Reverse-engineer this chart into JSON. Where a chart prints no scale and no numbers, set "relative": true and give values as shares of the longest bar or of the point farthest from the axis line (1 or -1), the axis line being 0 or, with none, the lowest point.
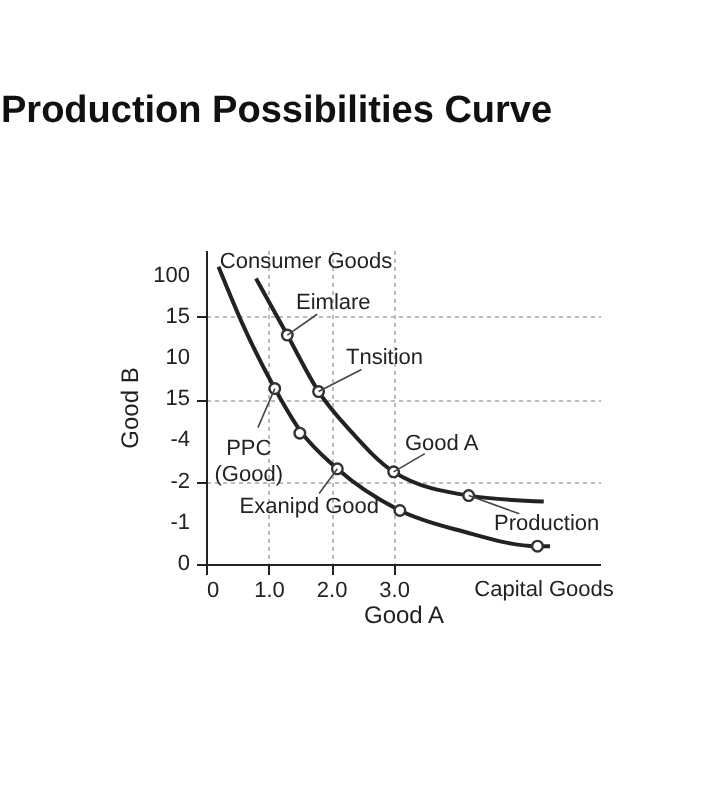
{
  "chart_data": {
    "type": "line",
    "title": "Production Possibilities Curve",
    "xlabel": "Good A",
    "ylabel": "Good B",
    "relative": true,
    "xlim": [
      0,
      6.3
    ],
    "xticks": [
      0,
      {
        "value": 1,
        "label": "1.0"
      },
      {
        "value": 2,
        "label": "2.0"
      },
      {
        "value": 3,
        "label": "3.0"
      }
    ],
    "grid": true,
    "series": [
      {
        "color": "#222222",
        "marker": "none",
        "x": [
          0.2,
          0.6,
          1.1,
          1.5,
          2.1,
          3.1,
          4.1,
          5.3,
          5.5
        ],
        "values": [
          1,
          0.8,
          0.59,
          0.45,
          0.32,
          0.18,
          0.11,
          0.06,
          0.06
        ]
      },
      {
        "color": "#222222",
        "marker": "none",
        "x": [
          0.8,
          1.3,
          1.8,
          2.3,
          3.0,
          4.2,
          5.4
        ],
        "values": [
          0.96,
          0.77,
          0.58,
          0.45,
          0.31,
          0.23,
          0.21
        ]
      },
      {
        "type": "scatter",
        "color": "#333333",
        "marker": "circle",
        "x": [
          1.3,
          1.8,
          1.1,
          1.5,
          2.1,
          3.0,
          3.1,
          4.2,
          5.3
        ],
        "values": [
          0.77,
          0.58,
          0.59,
          0.44,
          0.32,
          0.31,
          0.18,
          0.23,
          0.06
        ]
      }
    ],
    "annotations": [
      "Consumer Goods",
      "Capital Goods",
      "0",
      "-1",
      "-2",
      "-4",
      "15",
      "10",
      "15",
      "100",
      {
        "text": "Eimlare",
        "x": 1.3,
        "y": 0.77
      },
      {
        "text": "Tnsition",
        "x": 1.8,
        "y": 0.58
      },
      {
        "text": "PPC\n(Good)",
        "x": 1.1,
        "y": 0.59
      },
      {
        "text": "Exanipd Good",
        "x": 2.1,
        "y": 0.32
      },
      {
        "text": "Good A",
        "x": 3.0,
        "y": 0.31
      },
      {
        "text": "Production",
        "x": 4.2,
        "y": 0.23
      }
    ]
  }
}
